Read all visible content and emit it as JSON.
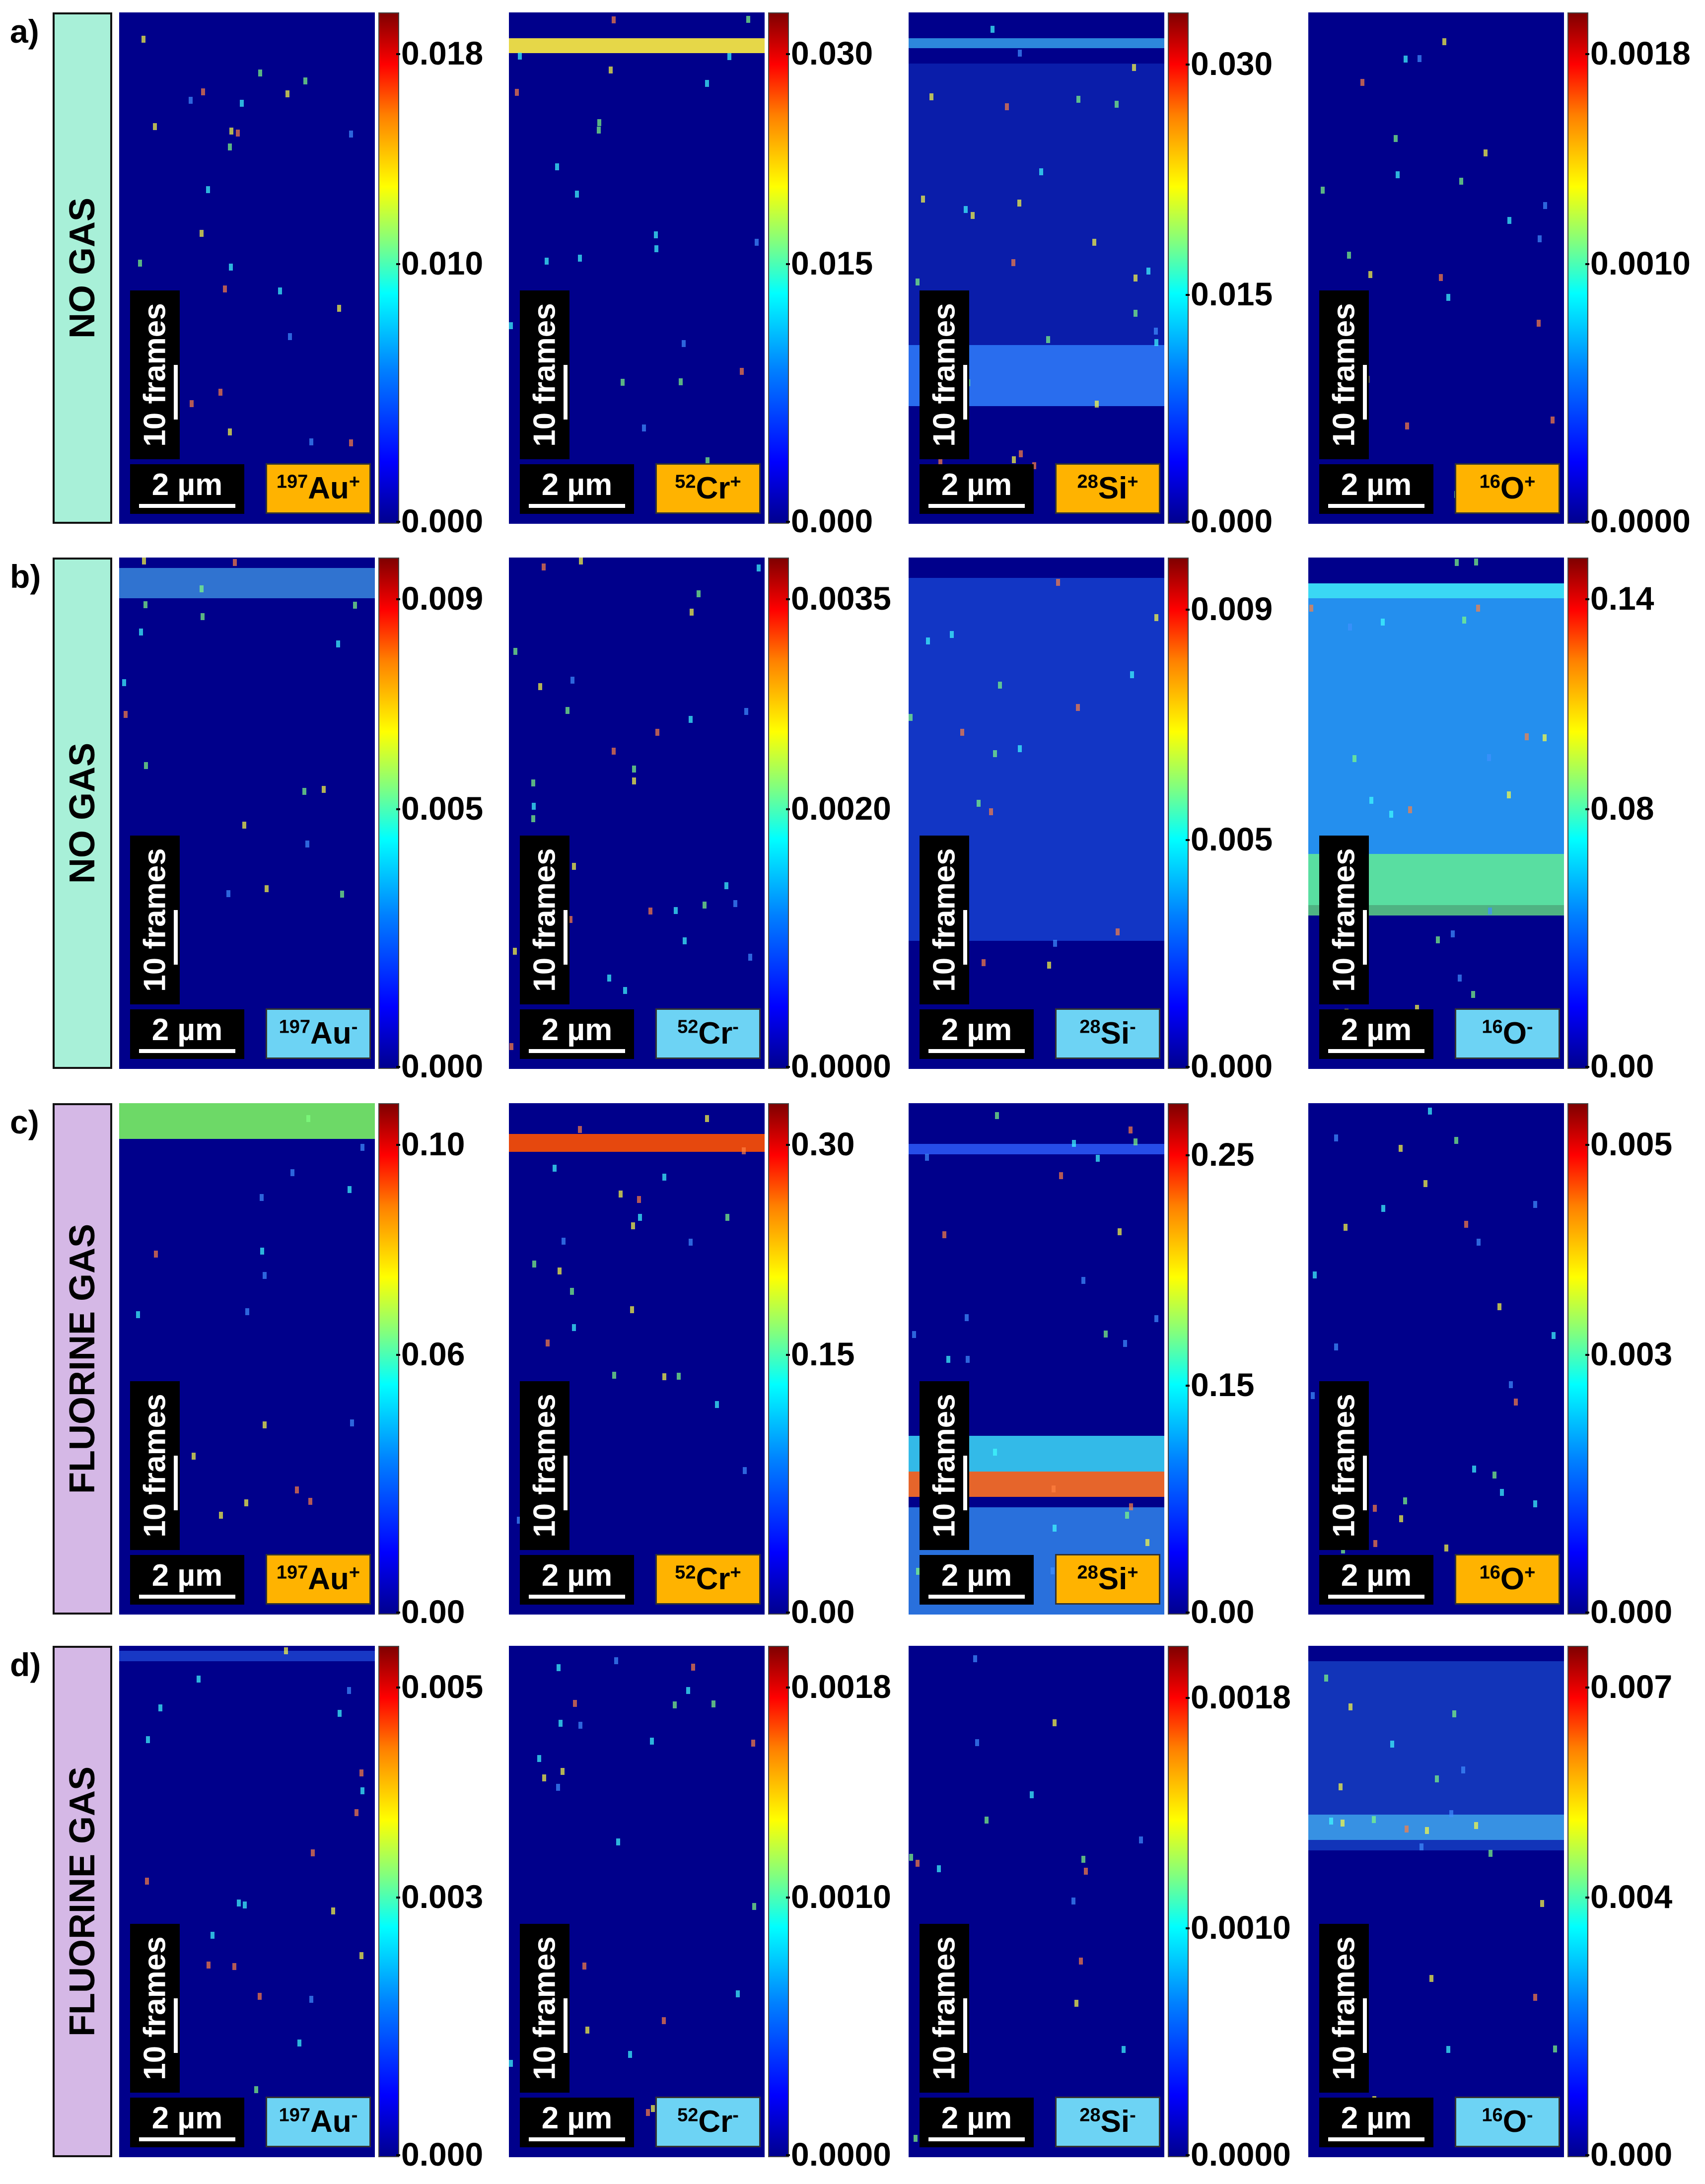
{
  "rows": [
    {
      "label": "a)",
      "condition": "NO GAS",
      "condition_color": "#a8f0d8",
      "panels": [
        {
          "ion_mass": "197",
          "ion_symbol": "Au",
          "charge": "+",
          "ticks": [
            "0.018",
            "0.010",
            "0.000"
          ],
          "colorbar_max": 0.02,
          "scale_bar": "2 µm",
          "frames_label": "10 frames"
        },
        {
          "ion_mass": "52",
          "ion_symbol": "Cr",
          "charge": "+",
          "ticks": [
            "0.030",
            "0.015",
            "0.000"
          ],
          "colorbar_max": 0.033,
          "scale_bar": "2 µm",
          "frames_label": "10 frames"
        },
        {
          "ion_mass": "28",
          "ion_symbol": "Si",
          "charge": "+",
          "ticks": [
            "0.030",
            "0.015",
            "0.000"
          ],
          "colorbar_max": 0.031,
          "scale_bar": "2 µm",
          "frames_label": "10 frames"
        },
        {
          "ion_mass": "16",
          "ion_symbol": "O",
          "charge": "+",
          "ticks": [
            "0.0018",
            "0.0010",
            "0.0000"
          ],
          "colorbar_max": 0.002,
          "scale_bar": "2 µm",
          "frames_label": "10 frames"
        }
      ]
    },
    {
      "label": "b)",
      "condition": "NO GAS",
      "condition_color": "#a8f0d8",
      "panels": [
        {
          "ion_mass": "197",
          "ion_symbol": "Au",
          "charge": "-",
          "ticks": [
            "0.009",
            "0.005",
            "0.000"
          ],
          "colorbar_max": 0.01,
          "scale_bar": "2 µm",
          "frames_label": "10 frames"
        },
        {
          "ion_mass": "52",
          "ion_symbol": "Cr",
          "charge": "-",
          "ticks": [
            "0.0035",
            "0.0020",
            "0.0000"
          ],
          "colorbar_max": 0.004,
          "scale_bar": "2 µm",
          "frames_label": "10 frames"
        },
        {
          "ion_mass": "28",
          "ion_symbol": "Si",
          "charge": "-",
          "ticks": [
            "0.009",
            "0.005",
            "0.000"
          ],
          "colorbar_max": 0.01,
          "scale_bar": "2 µm",
          "frames_label": "10 frames"
        },
        {
          "ion_mass": "16",
          "ion_symbol": "O",
          "charge": "-",
          "ticks": [
            "0.14",
            "0.08",
            "0.00"
          ],
          "colorbar_max": 0.15,
          "scale_bar": "2 µm",
          "frames_label": "10 frames"
        }
      ]
    },
    {
      "label": "c)",
      "condition": "FLUORINE GAS",
      "condition_color": "#d5b8e6",
      "panels": [
        {
          "ion_mass": "197",
          "ion_symbol": "Au",
          "charge": "+",
          "ticks": [
            "0.10",
            "0.06",
            "0.00"
          ],
          "colorbar_max": 0.115,
          "scale_bar": "2 µm",
          "frames_label": "10 frames"
        },
        {
          "ion_mass": "52",
          "ion_symbol": "Cr",
          "charge": "+",
          "ticks": [
            "0.30",
            "0.15",
            "0.00"
          ],
          "colorbar_max": 0.3,
          "scale_bar": "2 µm",
          "frames_label": "10 frames"
        },
        {
          "ion_mass": "28",
          "ion_symbol": "Si",
          "charge": "+",
          "ticks": [
            "0.25",
            "0.15",
            "0.00"
          ],
          "colorbar_max": 0.27,
          "scale_bar": "2 µm",
          "frames_label": "10 frames"
        },
        {
          "ion_mass": "16",
          "ion_symbol": "O",
          "charge": "+",
          "ticks": [
            "0.005",
            "0.003",
            "0.000"
          ],
          "colorbar_max": 0.006,
          "scale_bar": "2 µm",
          "frames_label": "10 frames"
        }
      ]
    },
    {
      "label": "d)",
      "condition": "FLUORINE GAS",
      "condition_color": "#d5b8e6",
      "panels": [
        {
          "ion_mass": "197",
          "ion_symbol": "Au",
          "charge": "-",
          "ticks": [
            "0.005",
            "0.003",
            "0.000"
          ],
          "colorbar_max": 0.006,
          "scale_bar": "2 µm",
          "frames_label": "10 frames"
        },
        {
          "ion_mass": "52",
          "ion_symbol": "Cr",
          "charge": "-",
          "ticks": [
            "0.0018",
            "0.0010",
            "0.0000"
          ],
          "colorbar_max": 0.002,
          "scale_bar": "2 µm",
          "frames_label": "10 frames"
        },
        {
          "ion_mass": "28",
          "ion_symbol": "Si",
          "charge": "-",
          "ticks": [
            "0.0018",
            "0.0010",
            "0.0000"
          ],
          "colorbar_max": 0.002,
          "scale_bar": "2 µm",
          "frames_label": "10 frames"
        },
        {
          "ion_mass": "16",
          "ion_symbol": "O",
          "charge": "-",
          "ticks": [
            "0.007",
            "0.004",
            "0.000"
          ],
          "colorbar_max": 0.008,
          "scale_bar": "2 µm",
          "frames_label": "10 frames"
        }
      ]
    }
  ],
  "colors": {
    "positive_ion_label": "#ffb300",
    "negative_ion_label": "#6dd3f4",
    "heatmap_background": "#00008b"
  }
}
